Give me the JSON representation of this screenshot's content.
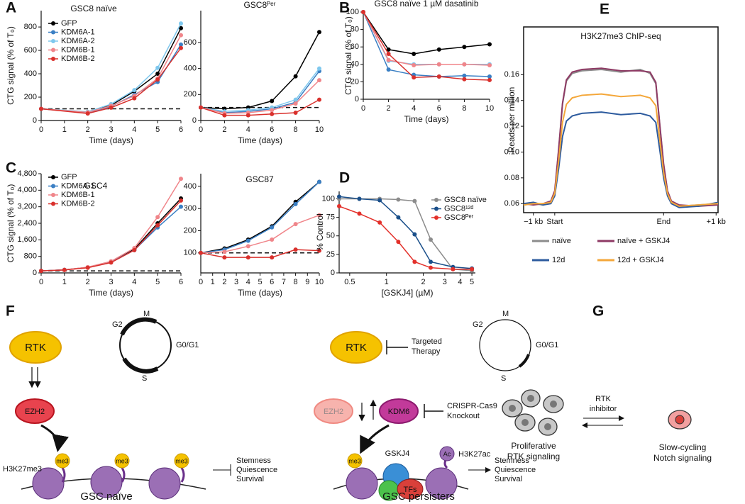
{
  "panel_labels": [
    "A",
    "B",
    "C",
    "D",
    "E",
    "F",
    "G"
  ],
  "chart_data": [
    {
      "type": "line",
      "title": "GSC8 naïve",
      "xlabel": "Time (days)",
      "ylabel": "CTG signal (% of T₀)",
      "x": [
        0,
        2,
        3,
        4,
        5,
        6
      ],
      "xlim": [
        0,
        6
      ],
      "xticks": [
        0,
        1,
        2,
        3,
        4,
        5,
        6
      ],
      "ylim": [
        0,
        940
      ],
      "yticks": [
        0,
        200,
        400,
        600,
        800
      ],
      "reference_line": 100,
      "markers": true,
      "legend": "upper left",
      "series": [
        {
          "name": "GFP",
          "color": "#000000",
          "values": [
            100,
            70,
            130,
            250,
            400,
            790
          ]
        },
        {
          "name": "KDM6A-1",
          "color": "#3a7fc4",
          "values": [
            100,
            65,
            120,
            220,
            330,
            650
          ]
        },
        {
          "name": "KDM6A-2",
          "color": "#7fc8ee",
          "values": [
            100,
            75,
            140,
            260,
            450,
            830
          ]
        },
        {
          "name": "KDM6B-1",
          "color": "#f0858a",
          "values": [
            100,
            70,
            125,
            210,
            360,
            730
          ]
        },
        {
          "name": "KDM6B-2",
          "color": "#d9302c",
          "values": [
            100,
            60,
            110,
            190,
            350,
            620
          ]
        }
      ]
    },
    {
      "type": "line",
      "title": "GSC8ᴾᵉʳ",
      "xlabel": "Time (days)",
      "x": [
        0,
        2,
        4,
        6,
        8,
        10
      ],
      "xlim": [
        0,
        10
      ],
      "xticks": [
        0,
        2,
        4,
        6,
        8,
        10
      ],
      "ylim": [
        0,
        845
      ],
      "yticks": [
        0,
        200,
        400,
        600
      ],
      "reference_line": 100,
      "markers": true,
      "series": [
        {
          "color": "#000000",
          "values": [
            100,
            90,
            100,
            150,
            340,
            680
          ]
        },
        {
          "color": "#3a7fc4",
          "values": [
            100,
            60,
            70,
            90,
            140,
            380
          ]
        },
        {
          "color": "#7fc8ee",
          "values": [
            100,
            70,
            80,
            100,
            160,
            400
          ]
        },
        {
          "color": "#f0858a",
          "values": [
            100,
            55,
            60,
            80,
            130,
            310
          ]
        },
        {
          "color": "#d9302c",
          "values": [
            100,
            40,
            40,
            50,
            60,
            160
          ]
        }
      ]
    },
    {
      "type": "line",
      "title": "GSC8 naïve 1 µM dasatinib",
      "xlabel": "Time (days)",
      "ylabel": "CTG signal (% of T₀)",
      "x": [
        0,
        2,
        4,
        6,
        8,
        10
      ],
      "xlim": [
        0,
        10
      ],
      "xticks": [
        0,
        2,
        4,
        6,
        8,
        10
      ],
      "ylim": [
        0,
        100
      ],
      "yticks": [
        0,
        20,
        40,
        60,
        80,
        100
      ],
      "markers": true,
      "series": [
        {
          "color": "#000000",
          "values": [
            100,
            57,
            52,
            57,
            60,
            63
          ]
        },
        {
          "color": "#3a7fc4",
          "values": [
            100,
            34,
            28,
            26,
            27,
            26
          ]
        },
        {
          "color": "#7fc8ee",
          "values": [
            100,
            44,
            40,
            40,
            40,
            40
          ]
        },
        {
          "color": "#f0858a",
          "values": [
            100,
            45,
            39,
            40,
            40,
            39
          ]
        },
        {
          "color": "#d9302c",
          "values": [
            100,
            52,
            25,
            26,
            23,
            22
          ]
        }
      ]
    },
    {
      "type": "line",
      "title": "GSC4",
      "xlabel": "Time (days)",
      "ylabel": "CTG signal (% of T₀)",
      "x": [
        0,
        1,
        2,
        3,
        4,
        5,
        6
      ],
      "xlim": [
        0,
        6
      ],
      "xticks": [
        0,
        1,
        2,
        3,
        4,
        5,
        6
      ],
      "ylim": [
        0,
        4800
      ],
      "yticks": [
        0,
        800,
        {
          "value": 1600,
          "label": "1,600"
        },
        {
          "value": 2400,
          "label": "2,400"
        },
        {
          "value": 3200,
          "label": "3,200"
        },
        {
          "value": 4000,
          "label": "4,000"
        },
        {
          "value": 4800,
          "label": "4,800"
        }
      ],
      "reference_line": 100,
      "markers": true,
      "legend": "upper left",
      "series": [
        {
          "name": "GFP",
          "color": "#000000",
          "values": [
            100,
            150,
            270,
            550,
            1150,
            2400,
            3600
          ]
        },
        {
          "name": "KDM6A-1",
          "color": "#3a7fc4",
          "values": [
            100,
            150,
            260,
            520,
            1100,
            2200,
            3200
          ]
        },
        {
          "name": "KDM6B-1",
          "color": "#f0858a",
          "values": [
            100,
            150,
            280,
            560,
            1200,
            2700,
            4550
          ]
        },
        {
          "name": "KDM6B-2",
          "color": "#d9302c",
          "values": [
            100,
            140,
            250,
            500,
            1100,
            2300,
            3500
          ]
        }
      ]
    },
    {
      "type": "line",
      "title": "GSC87",
      "xlabel": "Time (days)",
      "x": [
        0,
        2,
        4,
        6,
        8,
        10
      ],
      "xlim": [
        0,
        10
      ],
      "xticks": [
        0,
        1,
        2,
        3,
        4,
        5,
        6,
        7,
        8,
        9,
        10
      ],
      "ylim": [
        10,
        457
      ],
      "yticks": [
        100,
        200,
        300,
        400
      ],
      "reference_line": 100,
      "markers": true,
      "series": [
        {
          "color": "#000000",
          "values": [
            100,
            120,
            160,
            220,
            330,
            420
          ]
        },
        {
          "color": "#3a7fc4",
          "values": [
            100,
            115,
            155,
            215,
            320,
            420
          ]
        },
        {
          "color": "#f0858a",
          "values": [
            100,
            105,
            130,
            160,
            230,
            270
          ]
        },
        {
          "color": "#d9302c",
          "values": [
            100,
            80,
            80,
            80,
            115,
            110
          ]
        }
      ]
    },
    {
      "type": "line",
      "xlabel": "[GSKJ4] (µM)",
      "ylabel": "% Control",
      "xscale": "log",
      "x": [
        0.41,
        0.6,
        0.88,
        1.25,
        1.7,
        2.3,
        3.5,
        5
      ],
      "xlim": [
        0.41,
        5.34
      ],
      "xticks": [
        0.5,
        1,
        2,
        3,
        4,
        5
      ],
      "ylim": [
        0,
        110
      ],
      "yticks": [
        0,
        25,
        50,
        75,
        100
      ],
      "markers": true,
      "legend": "upper right",
      "series": [
        {
          "name": "GSC8 naïve",
          "color": "#8c8c8c",
          "values": [
            100,
            100,
            100,
            99,
            97,
            45,
            5,
            3
          ]
        },
        {
          "name": "GSC8¹²ᵈ",
          "color": "#1a4f8a",
          "values": [
            103,
            100,
            98,
            75,
            52,
            15,
            8,
            6
          ]
        },
        {
          "name": "GSC8ᴾᵉʳ",
          "color": "#e3302a",
          "values": [
            90,
            80,
            68,
            42,
            15,
            7,
            5,
            5
          ]
        }
      ]
    },
    {
      "type": "line",
      "title": "H3K27me3 ChIP-seq",
      "ylabel": "Reads per million",
      "frame": true,
      "markers": false,
      "legend": "below",
      "x": [
        0,
        5,
        10,
        14,
        16,
        18,
        20,
        22,
        25,
        30,
        40,
        50,
        60,
        65,
        68,
        70,
        72,
        74,
        76,
        80,
        90,
        100
      ],
      "xlim": [
        0,
        100
      ],
      "xticks": [
        {
          "value": 5,
          "label": "−1 kb"
        },
        {
          "value": 16,
          "label": "Start"
        },
        {
          "value": 72,
          "label": "End"
        },
        {
          "value": 99,
          "label": "+1 kb"
        }
      ],
      "ylim": [
        0.053,
        0.197
      ],
      "yticks": [
        0.06,
        0.08,
        {
          "value": 0.1,
          "label": "0.10"
        },
        0.12,
        0.14,
        0.16
      ],
      "series": [
        {
          "name": "naïve",
          "color": "#8c8c8c",
          "values": [
            0.059,
            0.06,
            0.059,
            0.061,
            0.069,
            0.101,
            0.137,
            0.155,
            0.161,
            0.163,
            0.164,
            0.162,
            0.164,
            0.161,
            0.153,
            0.121,
            0.09,
            0.069,
            0.061,
            0.058,
            0.059,
            0.06
          ]
        },
        {
          "name": "naïve + GSKJ4",
          "color": "#8e3a64",
          "values": [
            0.06,
            0.059,
            0.06,
            0.062,
            0.07,
            0.102,
            0.138,
            0.156,
            0.162,
            0.164,
            0.165,
            0.163,
            0.163,
            0.162,
            0.154,
            0.122,
            0.091,
            0.07,
            0.062,
            0.059,
            0.058,
            0.059
          ]
        },
        {
          "name": "12d",
          "color": "#2d5b9e",
          "values": [
            0.06,
            0.061,
            0.059,
            0.06,
            0.066,
            0.087,
            0.112,
            0.124,
            0.128,
            0.13,
            0.131,
            0.129,
            0.13,
            0.128,
            0.123,
            0.102,
            0.08,
            0.066,
            0.06,
            0.057,
            0.058,
            0.061
          ]
        },
        {
          "name": "12d + GSKJ4",
          "color": "#f4a73a",
          "values": [
            0.059,
            0.06,
            0.06,
            0.061,
            0.068,
            0.093,
            0.123,
            0.137,
            0.142,
            0.144,
            0.145,
            0.143,
            0.144,
            0.142,
            0.136,
            0.11,
            0.084,
            0.068,
            0.061,
            0.058,
            0.059,
            0.06
          ]
        }
      ]
    }
  ],
  "figure_f": {
    "naive": {
      "rtk": "RTK",
      "g2": "G2",
      "m": "M",
      "g0g1": "G0/G1",
      "s": "S",
      "ezh2": "EZH2",
      "me3": [
        "me3",
        "me3",
        "me3"
      ],
      "mark": "H3K27me3",
      "outcomes": [
        "Stemness",
        "Quiescence",
        "Survival"
      ],
      "caption": "GSC naïve"
    },
    "persisters": {
      "rtk": "RTK",
      "therapy": [
        "Targeted",
        "Therapy"
      ],
      "g2": "G2",
      "m": "M",
      "g0g1": "G0/G1",
      "s": "S",
      "ezh2": "EZH2",
      "kdm6": "KDM6",
      "crispr": [
        "CRISPR-Cas9",
        "Knockout"
      ],
      "me3": "me3",
      "gskj4": "GSKJ4",
      "ac": "Ac",
      "mark": "H3K27ac",
      "tfs": "TFs",
      "outcomes": [
        "Stemness",
        "Quiescence",
        "Survival"
      ],
      "caption": "GSC persisters"
    }
  },
  "figure_g": {
    "arrow": [
      "RTK",
      "inhibitor"
    ],
    "left": [
      "Proliferative",
      "RTK signaling"
    ],
    "right": [
      "Slow-cycling",
      "Notch signaling"
    ]
  }
}
